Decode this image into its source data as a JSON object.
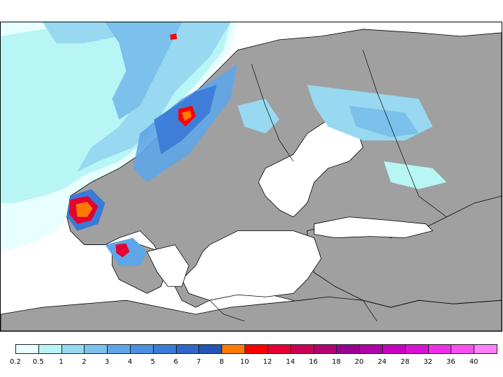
{
  "map": {
    "region": "Scandinavia and Baltic Sea",
    "land_color": "#a0a0a0",
    "sea_color": "#ffffff",
    "border_color": "#000000"
  },
  "legend": {
    "colors": [
      "#e8ffff",
      "#b8f5f5",
      "#98d8f0",
      "#7cc0ec",
      "#5ea6e8",
      "#4a90e0",
      "#3a7ad8",
      "#2e66cc",
      "#2254b4",
      "#ff7a00",
      "#ff0000",
      "#e60032",
      "#cc0055",
      "#b30073",
      "#990090",
      "#b000a8",
      "#c800c0",
      "#dd10d8",
      "#ee30e8",
      "#f850f0",
      "#ff80ff"
    ],
    "labels": [
      "0.2",
      "0.5",
      "1",
      "2",
      "3",
      "4",
      "5",
      "6",
      "7",
      "8",
      "10",
      "12",
      "14",
      "16",
      "18",
      "20",
      "24",
      "28",
      "32",
      "36",
      "40"
    ]
  }
}
